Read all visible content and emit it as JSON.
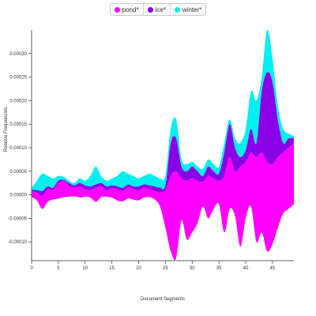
{
  "chart_data": {
    "type": "area",
    "xlabel": "Document Segments",
    "ylabel": "Relative Frequencies",
    "xlim": [
      0,
      49
    ],
    "ylim": [
      -0.00014,
      0.00035
    ],
    "x_ticks": [
      0,
      5,
      10,
      15,
      20,
      25,
      30,
      35,
      40,
      45
    ],
    "y_ticks": [
      -0.0001,
      -5e-05,
      0.0,
      5e-05,
      0.0001,
      0.00015,
      0.0002,
      0.00025,
      0.0003
    ],
    "y_tick_labels": [
      "-0.00010",
      "-0.00005",
      "0.00000",
      "0.00005",
      "0.00010",
      "0.00015",
      "0.00020",
      "0.00025",
      "0.00030"
    ],
    "legend_position": "top-center",
    "series": [
      {
        "name": "pond*",
        "color": "#ff00ff",
        "lower": [
          -5e-06,
          -1.2e-05,
          -3e-05,
          -1.5e-05,
          -1e-05,
          -8e-06,
          -5e-06,
          -4e-06,
          -3e-06,
          -6e-06,
          -4e-06,
          -6e-06,
          -1.5e-05,
          -5e-06,
          -4e-06,
          -6e-06,
          -1.2e-05,
          -1.4e-05,
          -8e-06,
          -1e-05,
          -1.2e-05,
          -6e-06,
          -5e-06,
          -1e-05,
          -2.5e-05,
          -7e-05,
          -0.00012,
          -0.000135,
          -5.5e-05,
          -9.5e-05,
          -8e-05,
          -6e-05,
          -2.5e-05,
          -5e-05,
          -3e-05,
          -2e-05,
          -8e-05,
          -3e-05,
          -4.5e-05,
          -0.00011,
          -5e-05,
          -2.5e-05,
          -0.0001,
          -8e-05,
          -0.00012,
          -0.000105,
          -7e-05,
          -4e-05,
          -3e-05,
          -2e-05
        ],
        "upper": [
          8e-06,
          5e-06,
          -2e-06,
          1.2e-05,
          1e-05,
          2.5e-05,
          3e-05,
          2e-05,
          1.5e-05,
          1.8e-05,
          1.2e-05,
          1e-05,
          1.5e-05,
          1.8e-05,
          1e-05,
          1.4e-05,
          1.2e-05,
          8e-06,
          1.6e-05,
          1.2e-05,
          1e-05,
          1.5e-05,
          1.2e-05,
          8e-06,
          5e-06,
          1e-05,
          4e-05,
          5e-05,
          3.5e-05,
          3e-05,
          3.5e-05,
          3e-05,
          2.8e-05,
          4e-05,
          3.5e-05,
          3e-05,
          4e-05,
          8e-05,
          5e-05,
          6e-05,
          7e-05,
          9e-05,
          8e-05,
          9e-05,
          7e-05,
          6.5e-05,
          8e-05,
          9e-05,
          0.0001,
          0.00011
        ]
      },
      {
        "name": "ice*",
        "color": "#8a00e6",
        "lower": [
          8e-06,
          5e-06,
          -2e-06,
          1.2e-05,
          1e-05,
          2.5e-05,
          3e-05,
          2e-05,
          1.5e-05,
          1.8e-05,
          1.2e-05,
          1e-05,
          1.5e-05,
          1.8e-05,
          1e-05,
          1.4e-05,
          1.2e-05,
          8e-06,
          1.6e-05,
          1.2e-05,
          1e-05,
          1.5e-05,
          1.2e-05,
          8e-06,
          5e-06,
          1e-05,
          4e-05,
          5e-05,
          3.5e-05,
          3e-05,
          3.5e-05,
          3e-05,
          2.8e-05,
          4e-05,
          3.5e-05,
          3e-05,
          4e-05,
          8e-05,
          5e-05,
          6e-05,
          7e-05,
          9e-05,
          8e-05,
          9e-05,
          7e-05,
          6.5e-05,
          8e-05,
          9e-05,
          0.0001,
          0.00011
        ],
        "upper": [
          1e-05,
          1e-05,
          8e-06,
          1.8e-05,
          1.5e-05,
          3e-05,
          3.2e-05,
          2.5e-05,
          2e-05,
          2.5e-05,
          2e-05,
          1.8e-05,
          2.2e-05,
          2.5e-05,
          1.8e-05,
          2e-05,
          1.8e-05,
          1.5e-05,
          2.2e-05,
          1.8e-05,
          1.8e-05,
          2.2e-05,
          2e-05,
          1.8e-05,
          1.5e-05,
          2e-05,
          0.00011,
          0.00012,
          6e-05,
          5e-05,
          6e-05,
          5e-05,
          4e-05,
          6e-05,
          5e-05,
          4.5e-05,
          9e-05,
          0.00015,
          0.0001,
          8e-05,
          9.5e-05,
          0.00014,
          0.00011,
          0.00022,
          0.00026,
          0.00024,
          0.00016,
          0.00011,
          0.00012,
          0.00012
        ]
      },
      {
        "name": "winter*",
        "color": "#00f0f0",
        "lower": [
          1e-05,
          1e-05,
          8e-06,
          1.8e-05,
          1.5e-05,
          3e-05,
          3.2e-05,
          2.5e-05,
          2e-05,
          2.5e-05,
          2e-05,
          1.8e-05,
          2.2e-05,
          2.5e-05,
          1.8e-05,
          2e-05,
          1.8e-05,
          1.5e-05,
          2.2e-05,
          1.8e-05,
          1.8e-05,
          2.2e-05,
          2e-05,
          1.8e-05,
          1.5e-05,
          2e-05,
          0.00011,
          0.00012,
          6e-05,
          5e-05,
          6e-05,
          5e-05,
          4e-05,
          6e-05,
          5e-05,
          4.5e-05,
          9e-05,
          0.00015,
          0.0001,
          8e-05,
          9.5e-05,
          0.00014,
          0.00011,
          0.00022,
          0.00026,
          0.00024,
          0.00016,
          0.00011,
          0.00012,
          0.00012
        ],
        "upper": [
          1.5e-05,
          3e-05,
          4.5e-05,
          4e-05,
          3.5e-05,
          4e-05,
          3.8e-05,
          3e-05,
          2.5e-05,
          3.5e-05,
          3e-05,
          4e-05,
          6e-05,
          4e-05,
          3e-05,
          3.5e-05,
          4e-05,
          5e-05,
          4.5e-05,
          4e-05,
          3.5e-05,
          4e-05,
          4.5e-05,
          4e-05,
          3.5e-05,
          4e-05,
          0.00014,
          0.00016,
          7.5e-05,
          6.5e-05,
          7e-05,
          6e-05,
          5.5e-05,
          7.5e-05,
          6.5e-05,
          6e-05,
          0.00011,
          0.00016,
          0.00012,
          0.00011,
          0.00014,
          0.00022,
          0.0002,
          0.00025,
          0.00035,
          0.00029,
          0.00019,
          0.00014,
          0.00013,
          0.000125
        ]
      }
    ]
  }
}
